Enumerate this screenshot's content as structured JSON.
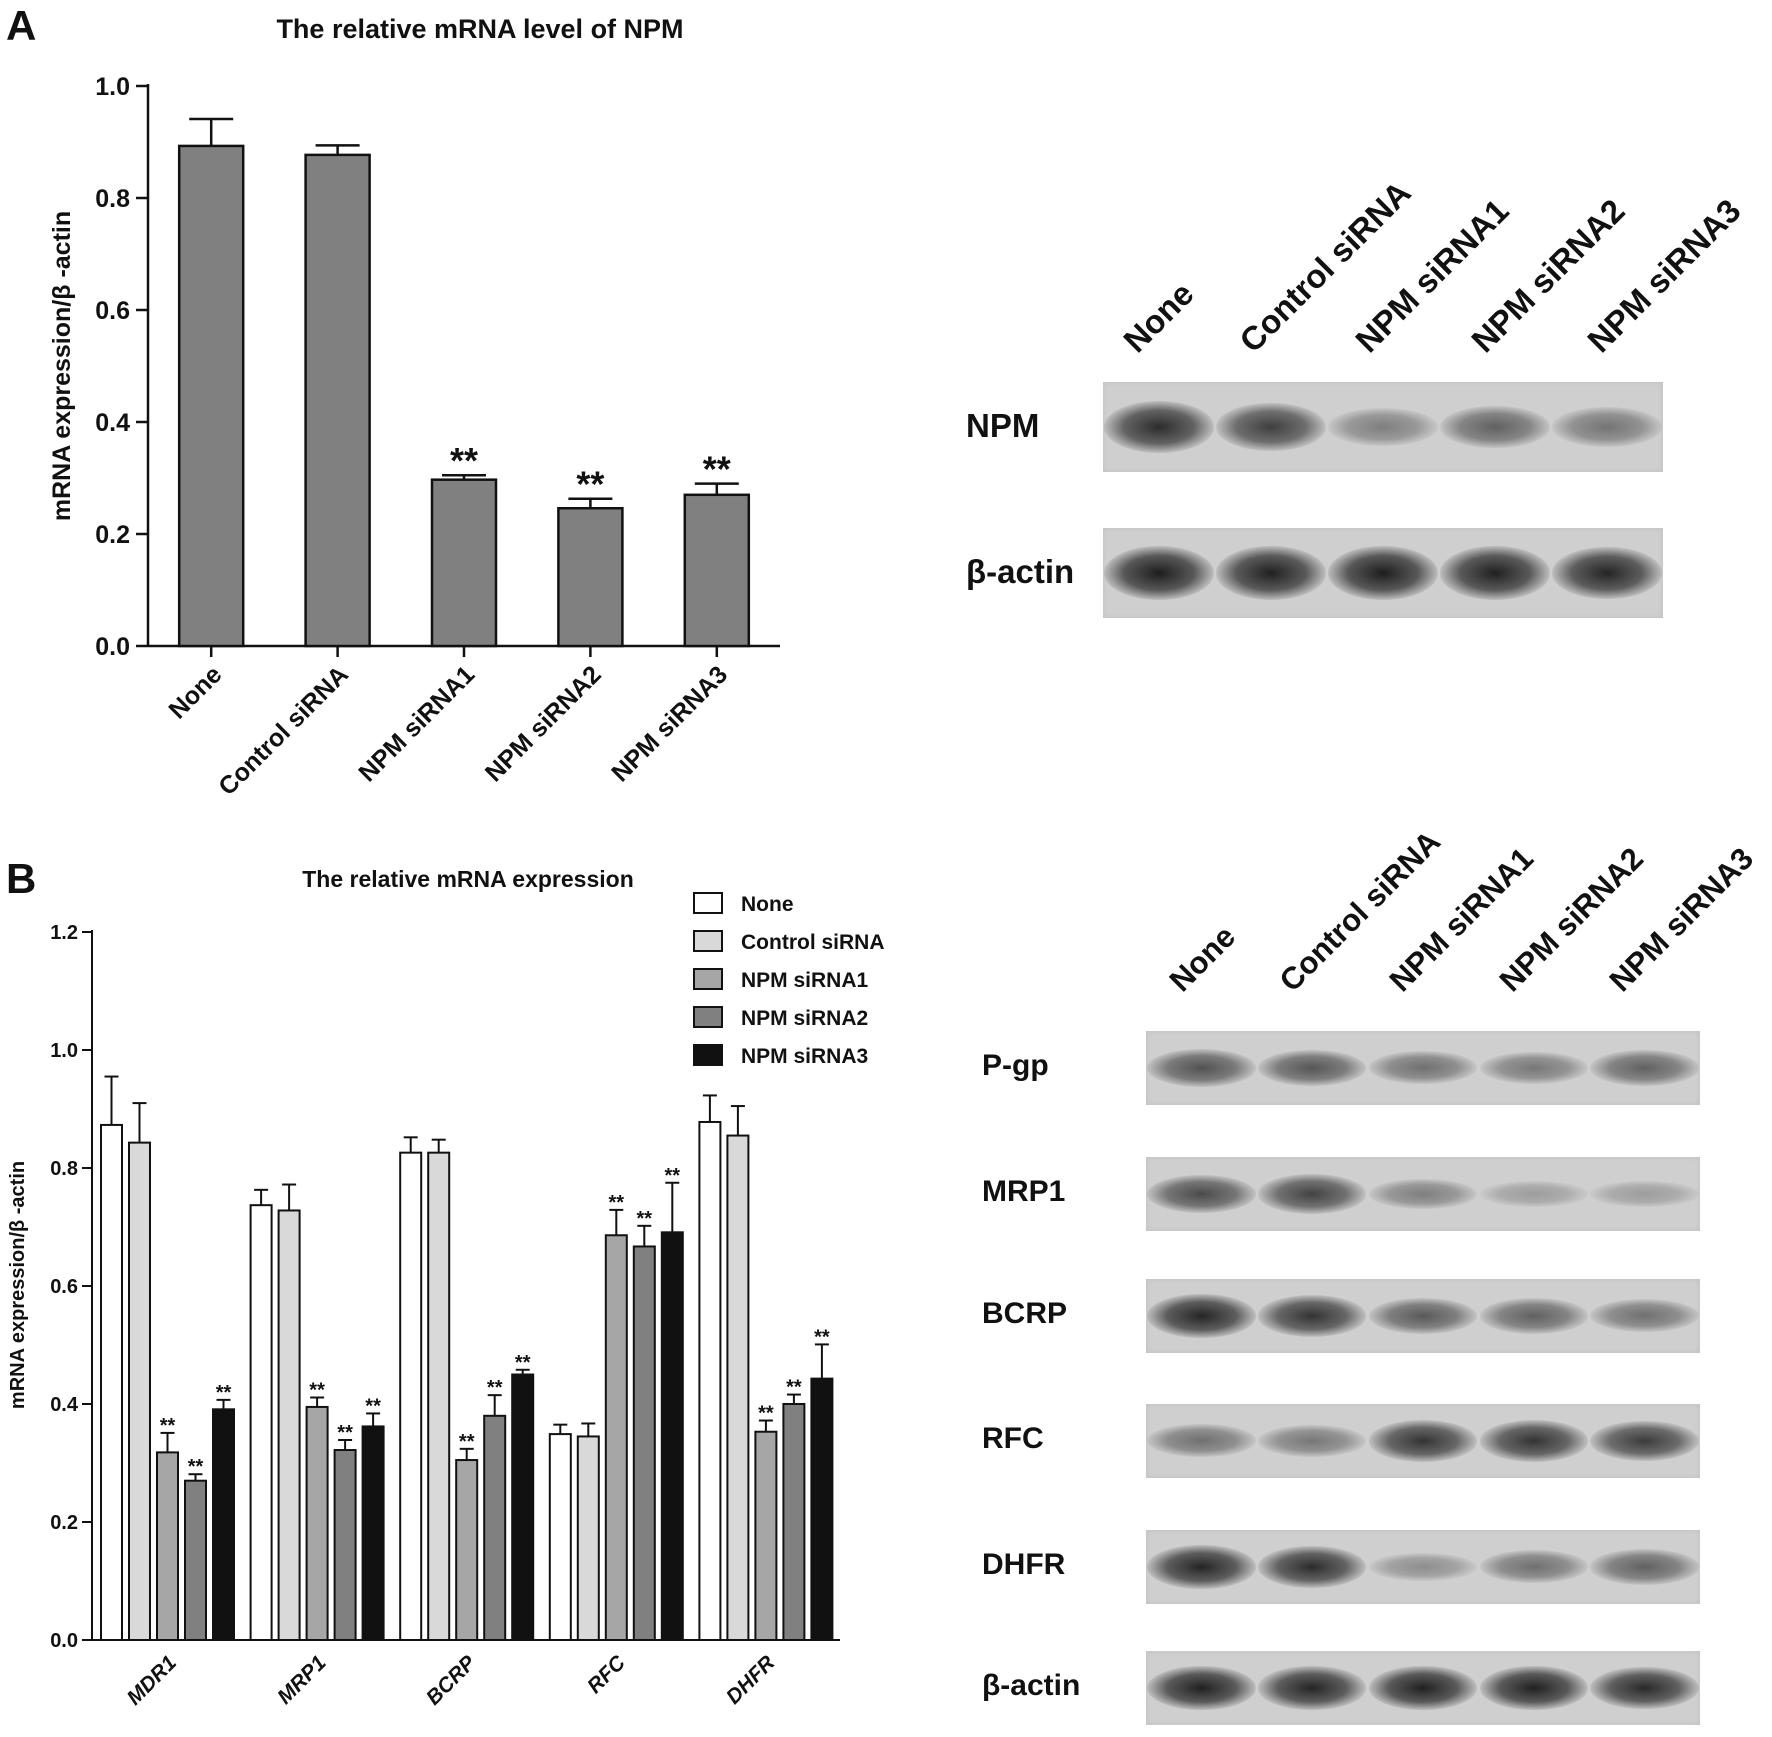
{
  "panel_a": {
    "letter": "A",
    "blot": {
      "lanes": [
        "None",
        "Control siRNA",
        "NPM siRNA1",
        "NPM siRNA2",
        "NPM siRNA3"
      ],
      "rows": [
        {
          "label": "NPM",
          "intensity": [
            0.9,
            0.78,
            0.35,
            0.55,
            0.42
          ]
        },
        {
          "label": "β-actin",
          "intensity": [
            1.0,
            0.98,
            1.0,
            0.98,
            0.95
          ]
        }
      ]
    }
  },
  "panel_b": {
    "letter": "B",
    "blot": {
      "lanes": [
        "None",
        "Control siRNA",
        "NPM siRNA1",
        "NPM siRNA2",
        "NPM siRNA3"
      ],
      "rows": [
        {
          "label": "P-gp",
          "intensity": [
            0.65,
            0.62,
            0.45,
            0.4,
            0.55
          ]
        },
        {
          "label": "MRP1",
          "intensity": [
            0.7,
            0.75,
            0.35,
            0.15,
            0.15
          ]
        },
        {
          "label": "BCRP",
          "intensity": [
            0.95,
            0.85,
            0.6,
            0.55,
            0.45
          ]
        },
        {
          "label": "RFC",
          "intensity": [
            0.45,
            0.4,
            0.85,
            0.85,
            0.8
          ]
        },
        {
          "label": "DHFR",
          "intensity": [
            0.95,
            0.9,
            0.25,
            0.45,
            0.55
          ]
        },
        {
          "label": "β-actin",
          "intensity": [
            0.98,
            0.95,
            0.98,
            0.98,
            0.92
          ]
        }
      ]
    }
  },
  "chart_data": [
    {
      "type": "bar",
      "title": "The relative mRNA level of NPM",
      "xlabel": "",
      "ylabel": "mRNA expression/β -actin",
      "categories": [
        "None",
        "Control siRNA",
        "NPM siRNA1",
        "NPM siRNA2",
        "NPM siRNA3"
      ],
      "values": [
        0.893,
        0.877,
        0.297,
        0.246,
        0.27
      ],
      "errors": [
        0.048,
        0.017,
        0.008,
        0.017,
        0.02
      ],
      "annotations": [
        "",
        "",
        "**",
        "**",
        "**"
      ],
      "ylim": [
        0,
        1.0
      ],
      "yticks": [
        "0.0",
        "0.2",
        "0.4",
        "0.6",
        "0.8",
        "1.0"
      ],
      "bar_color": "#808080"
    },
    {
      "type": "bar",
      "title": "The relative mRNA expression",
      "xlabel": "",
      "ylabel": "mRNA expression/β -actin",
      "categories": [
        "MDR1",
        "MRP1",
        "BCRP",
        "RFC",
        "DHFR"
      ],
      "ylim": [
        0,
        1.2
      ],
      "yticks": [
        "0.0",
        "0.2",
        "0.4",
        "0.6",
        "0.8",
        "1.0",
        "1.2"
      ],
      "legend_position": "top-right",
      "series": [
        {
          "name": "None",
          "color": "#ffffff",
          "values": [
            0.873,
            0.737,
            0.826,
            0.349,
            0.878
          ],
          "errors": [
            0.082,
            0.026,
            0.026,
            0.016,
            0.045
          ],
          "annotations": [
            "",
            "",
            "",
            "",
            ""
          ]
        },
        {
          "name": "Control siRNA",
          "color": "#d9d9d9",
          "values": [
            0.843,
            0.728,
            0.826,
            0.345,
            0.855
          ],
          "errors": [
            0.067,
            0.044,
            0.022,
            0.022,
            0.05
          ],
          "annotations": [
            "",
            "",
            "",
            "",
            ""
          ]
        },
        {
          "name": "NPM siRNA1",
          "color": "#a6a6a6",
          "values": [
            0.318,
            0.395,
            0.305,
            0.686,
            0.353
          ],
          "errors": [
            0.033,
            0.016,
            0.019,
            0.043,
            0.019
          ],
          "annotations": [
            "**",
            "**",
            "**",
            "**",
            "**"
          ]
        },
        {
          "name": "NPM siRNA2",
          "color": "#808080",
          "values": [
            0.27,
            0.322,
            0.38,
            0.667,
            0.4
          ],
          "errors": [
            0.011,
            0.017,
            0.035,
            0.035,
            0.016
          ],
          "annotations": [
            "**",
            "**",
            "**",
            "**",
            "**"
          ]
        },
        {
          "name": "NPM siRNA3",
          "color": "#111111",
          "values": [
            0.391,
            0.362,
            0.45,
            0.691,
            0.443
          ],
          "errors": [
            0.016,
            0.022,
            0.008,
            0.084,
            0.058
          ],
          "annotations": [
            "**",
            "**",
            "**",
            "**",
            "**"
          ]
        }
      ]
    }
  ]
}
